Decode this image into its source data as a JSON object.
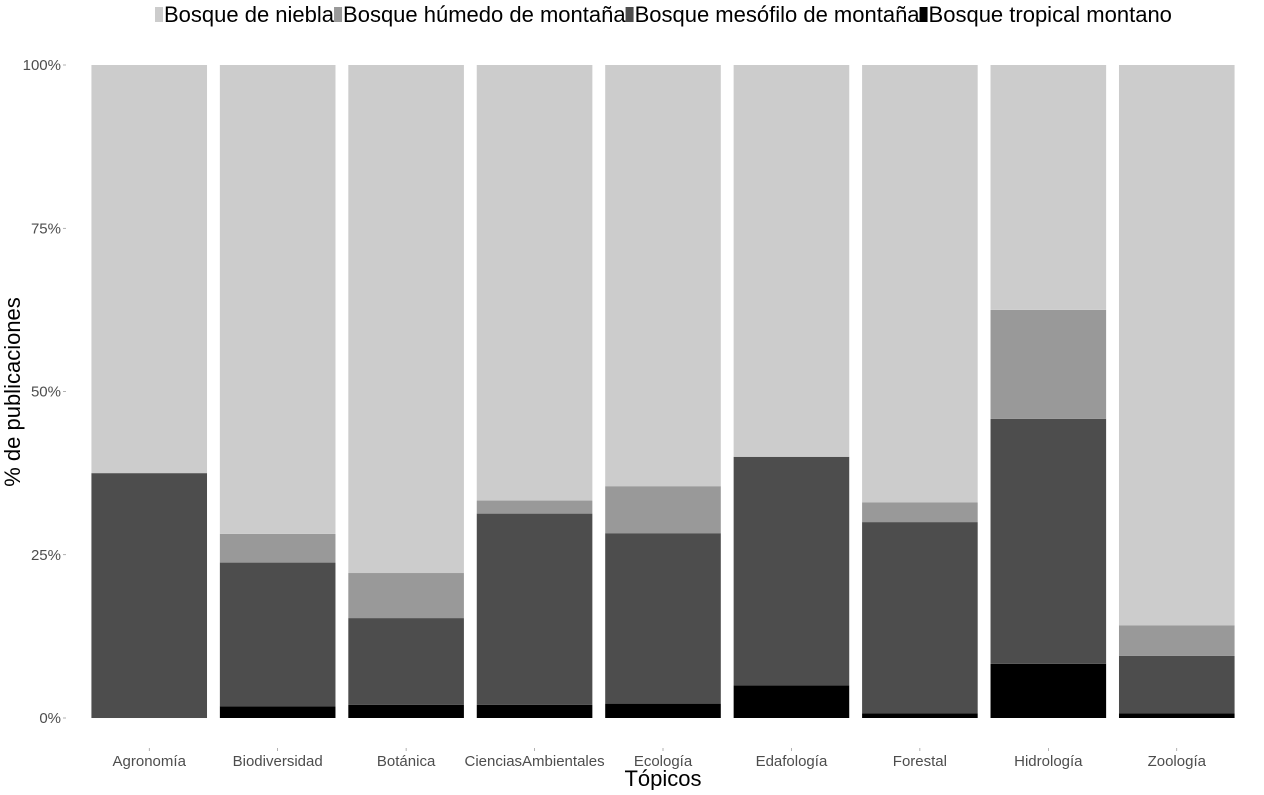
{
  "chart_data": {
    "type": "bar",
    "stacked": true,
    "normalized": true,
    "title": "",
    "xlabel": "Tópicos",
    "ylabel": "% de publicaciones",
    "ylim": [
      0,
      100
    ],
    "y_ticks": [
      {
        "value": 0,
        "label": "0%"
      },
      {
        "value": 25,
        "label": "25%"
      },
      {
        "value": 50,
        "label": "50%"
      },
      {
        "value": 75,
        "label": "75%"
      },
      {
        "value": 100,
        "label": "100%"
      }
    ],
    "grid": false,
    "legend_position": "top",
    "categories": [
      "Agronomía",
      "Biodiversidad",
      "Botánica",
      "CienciasAmbientales",
      "Ecología",
      "Edafología",
      "Forestal",
      "Hidrología",
      "Zoología"
    ],
    "series": [
      {
        "name": "Bosque tropical montano",
        "color": "#000000",
        "values": [
          0,
          1.8,
          2.0,
          2.0,
          2.2,
          5.0,
          0.7,
          8.3,
          0.7
        ]
      },
      {
        "name": "Bosque mesófilo de montaña",
        "color": "#4d4d4d",
        "values": [
          37.5,
          22.0,
          13.3,
          29.3,
          26.1,
          35.0,
          29.3,
          37.5,
          8.8
        ]
      },
      {
        "name": "Bosque húmedo de montaña",
        "color": "#999999",
        "values": [
          0,
          4.4,
          6.9,
          2.0,
          7.2,
          0,
          3.0,
          16.7,
          4.7
        ]
      },
      {
        "name": "Bosque de niebla",
        "color": "#cccccc",
        "values": [
          62.5,
          71.8,
          77.8,
          66.7,
          64.5,
          60.0,
          67.0,
          37.5,
          85.8
        ]
      }
    ],
    "legend_order": [
      "Bosque de niebla",
      "Bosque húmedo de montaña",
      "Bosque mesófilo de montaña",
      "Bosque tropical montano"
    ]
  }
}
